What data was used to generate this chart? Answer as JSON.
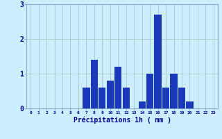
{
  "hours": [
    0,
    1,
    2,
    3,
    4,
    5,
    6,
    7,
    8,
    9,
    10,
    11,
    12,
    13,
    14,
    15,
    16,
    17,
    18,
    19,
    20,
    21,
    22,
    23
  ],
  "values": [
    0,
    0,
    0,
    0,
    0,
    0,
    0,
    0.6,
    1.4,
    0.6,
    0.8,
    1.2,
    0.6,
    0,
    0.2,
    1.0,
    2.7,
    0.6,
    1.0,
    0.6,
    0.2,
    0,
    0,
    0
  ],
  "bar_color": "#1a3aba",
  "bg_color": "#cceeff",
  "grid_color": "#aacccc",
  "xlabel": "Précipitations 1h ( mm )",
  "xlabel_color": "#00008b",
  "tick_color": "#00008b",
  "ylim": [
    0,
    3
  ],
  "yticks": [
    0,
    1,
    2,
    3
  ],
  "axis_color": "#88aacc"
}
